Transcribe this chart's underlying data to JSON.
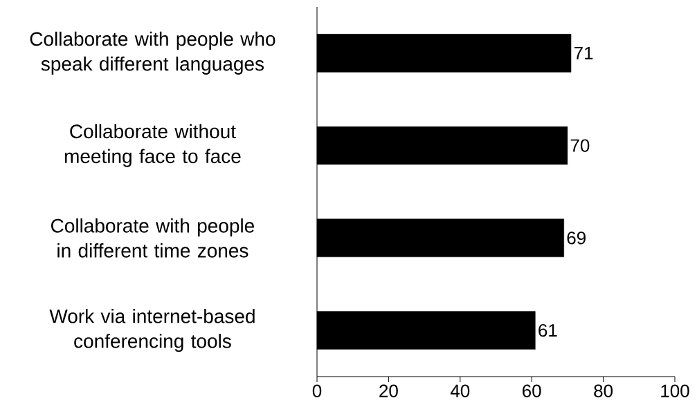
{
  "chart_data": {
    "type": "bar",
    "orientation": "horizontal",
    "categories": [
      "Collaborate with people who speak different languages",
      "Collaborate without meeting face to face",
      "Collaborate with people in different time zones",
      "Work via internet-based conferencing tools"
    ],
    "values": [
      71,
      70,
      69,
      61
    ],
    "color": "#000000",
    "xlim": [
      0,
      100
    ],
    "xticks": [
      0,
      20,
      40,
      60,
      80,
      100
    ],
    "data_labels": true,
    "grid": false
  }
}
